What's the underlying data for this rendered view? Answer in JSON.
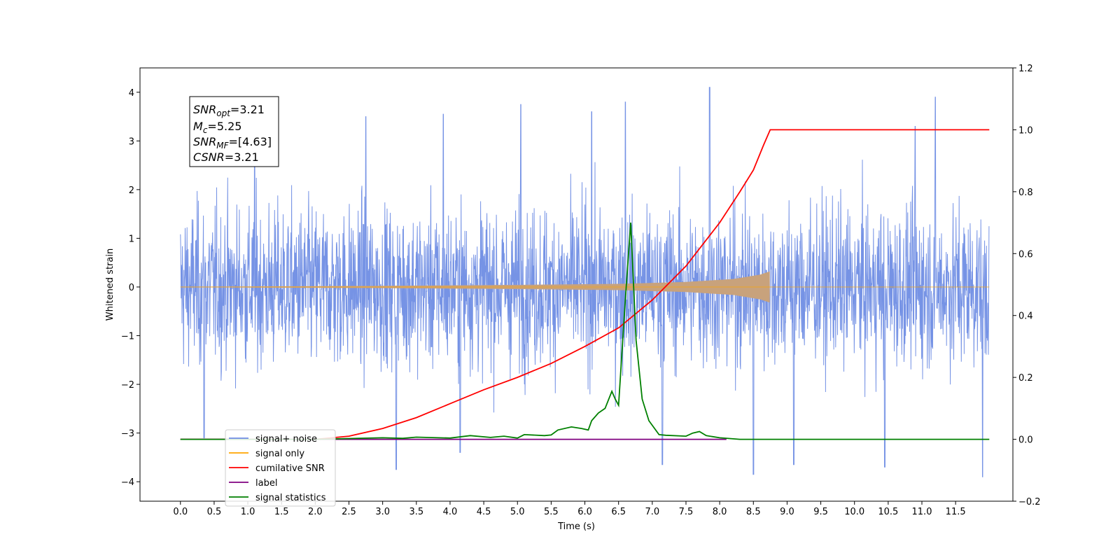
{
  "chart_data": {
    "type": "line",
    "xlabel": "Time (s)",
    "ylabel_left": "Whitened strain",
    "ylabel_right": "",
    "xlim": [
      -0.6,
      12.35
    ],
    "ylim_left": [
      -4.4,
      4.5
    ],
    "ylim_right": [
      -0.2,
      1.2
    ],
    "x_ticks": [
      "0.0",
      "0.5",
      "1.0",
      "1.5",
      "2.0",
      "2.5",
      "3.0",
      "3.5",
      "4.0",
      "4.5",
      "5.0",
      "5.5",
      "6.0",
      "6.5",
      "7.0",
      "7.5",
      "8.0",
      "8.5",
      "9.0",
      "9.5",
      "10.0",
      "10.5",
      "11.0",
      "11.5"
    ],
    "y_left_ticks": [
      "4",
      "3",
      "2",
      "1",
      "0",
      "−1",
      "−2",
      "−3",
      "−4"
    ],
    "y_right_ticks": [
      "1.2",
      "1.0",
      "0.8",
      "0.6",
      "0.4",
      "0.2",
      "0.0",
      "−0.2"
    ],
    "grid": false,
    "legend_position": "lower-left",
    "stats_box": {
      "snr_opt": "=3.21",
      "mc": "=5.25",
      "snr_mf": "=[4.63]",
      "csnr": "=3.21"
    },
    "series": [
      {
        "name": "signal+ noise",
        "axis": "left",
        "color": "#6f8de4",
        "description_range": [
          -3.3,
          4.1
        ],
        "x_range": [
          0.0,
          12.0
        ],
        "spikes": [
          {
            "x": 1.1,
            "y": 3.1
          },
          {
            "x": 2.75,
            "y": 3.5
          },
          {
            "x": 3.9,
            "y": 3.55
          },
          {
            "x": 5.05,
            "y": 3.75
          },
          {
            "x": 6.1,
            "y": 3.6
          },
          {
            "x": 6.6,
            "y": 3.8
          },
          {
            "x": 7.85,
            "y": 4.1
          },
          {
            "x": 11.2,
            "y": 3.9
          },
          {
            "x": 10.9,
            "y": 3.3
          },
          {
            "x": 3.2,
            "y": -3.75
          },
          {
            "x": 4.15,
            "y": -3.4
          },
          {
            "x": 7.15,
            "y": -3.65
          },
          {
            "x": 8.5,
            "y": -3.85
          },
          {
            "x": 9.1,
            "y": -3.65
          },
          {
            "x": 10.45,
            "y": -3.7
          },
          {
            "x": 11.9,
            "y": -3.9
          },
          {
            "x": 0.35,
            "y": -3.1
          }
        ]
      },
      {
        "name": "signal only",
        "axis": "left",
        "color": "#ffa500",
        "fill_color": "#c8a27c",
        "envelope": [
          [
            0.0,
            0.0
          ],
          [
            3.0,
            0.02
          ],
          [
            5.0,
            0.04
          ],
          [
            6.5,
            0.06
          ],
          [
            7.5,
            0.1
          ],
          [
            8.2,
            0.16
          ],
          [
            8.6,
            0.25
          ],
          [
            8.75,
            0.32
          ]
        ],
        "end_x": 8.75,
        "x_range": [
          0.0,
          12.0
        ]
      },
      {
        "name": "cumilative SNR",
        "axis": "right",
        "color": "#ff0000",
        "x": [
          0.0,
          2.0,
          2.5,
          3.0,
          3.5,
          4.0,
          4.5,
          5.0,
          5.5,
          6.0,
          6.5,
          7.0,
          7.5,
          8.0,
          8.3,
          8.5,
          8.65,
          8.75,
          12.0
        ],
        "y": [
          0.0,
          0.0,
          0.01,
          0.035,
          0.07,
          0.115,
          0.16,
          0.2,
          0.245,
          0.3,
          0.36,
          0.45,
          0.56,
          0.7,
          0.8,
          0.87,
          0.95,
          1.0,
          1.0
        ]
      },
      {
        "name": "label",
        "axis": "right",
        "color": "#800080",
        "x": [
          0.0,
          8.1
        ],
        "y": [
          0.0,
          0.0
        ]
      },
      {
        "name": "signal statistics",
        "axis": "right",
        "color": "#008000",
        "x": [
          0.0,
          2.0,
          3.0,
          3.3,
          3.5,
          4.0,
          4.3,
          4.6,
          4.8,
          5.0,
          5.1,
          5.4,
          5.5,
          5.6,
          5.8,
          5.95,
          6.05,
          6.1,
          6.2,
          6.3,
          6.4,
          6.45,
          6.5,
          6.6,
          6.68,
          6.76,
          6.85,
          6.95,
          7.1,
          7.2,
          7.5,
          7.6,
          7.7,
          7.8,
          8.0,
          8.3,
          12.0
        ],
        "y": [
          0.0,
          0.0,
          0.005,
          0.003,
          0.007,
          0.004,
          0.012,
          0.006,
          0.01,
          0.004,
          0.015,
          0.012,
          0.014,
          0.03,
          0.04,
          0.035,
          0.03,
          0.06,
          0.085,
          0.1,
          0.155,
          0.13,
          0.11,
          0.45,
          0.7,
          0.32,
          0.13,
          0.06,
          0.015,
          0.013,
          0.01,
          0.02,
          0.025,
          0.012,
          0.005,
          0.0,
          0.0
        ]
      },
      {
        "name": "signal only",
        "legend_only": true,
        "color": "#7a7a7a",
        "note_label": ""
      }
    ],
    "legend_entries": [
      {
        "label": "signal+ noise",
        "color": "#6f8de4"
      },
      {
        "label": "signal only",
        "color": "#ffa500"
      },
      {
        "label": "cumilative SNR",
        "color": "#ff0000"
      },
      {
        "label": "label",
        "color": "#800080"
      },
      {
        "label": "signal statistics",
        "color": "#008000"
      }
    ]
  }
}
